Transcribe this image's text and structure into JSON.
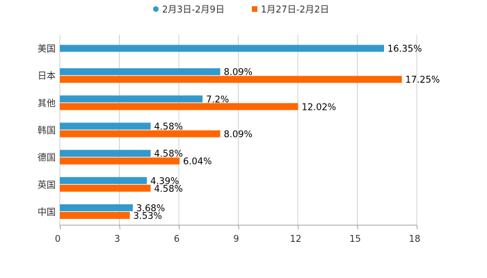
{
  "chart_data": {
    "type": "bar",
    "orientation": "horizontal",
    "categories": [
      "美国",
      "日本",
      "其他",
      "韩国",
      "德国",
      "英国",
      "中国"
    ],
    "series": [
      {
        "name": "2月3日-2月9日",
        "color": "#3399cc",
        "values": [
          16.35,
          8.09,
          7.2,
          4.58,
          4.58,
          4.39,
          3.68
        ],
        "labels": [
          "16.35%",
          "8.09%",
          "7.2%",
          "4.58%",
          "4.58%",
          "4.39%",
          "3.68%"
        ]
      },
      {
        "name": "1月27日-2月2日",
        "color": "#ff6600",
        "values": [
          null,
          17.25,
          12.02,
          8.09,
          6.04,
          4.58,
          3.53
        ],
        "labels": [
          null,
          "17.25%",
          "12.02%",
          "8.09%",
          "6.04%",
          "4.58%",
          "3.53%"
        ]
      }
    ],
    "xlim": [
      0,
      18
    ],
    "xticks": [
      "0",
      "3",
      "6",
      "9",
      "12",
      "15",
      "18"
    ],
    "title": "",
    "xlabel": "",
    "ylabel": "",
    "grid": true,
    "legend_position": "top-center"
  }
}
